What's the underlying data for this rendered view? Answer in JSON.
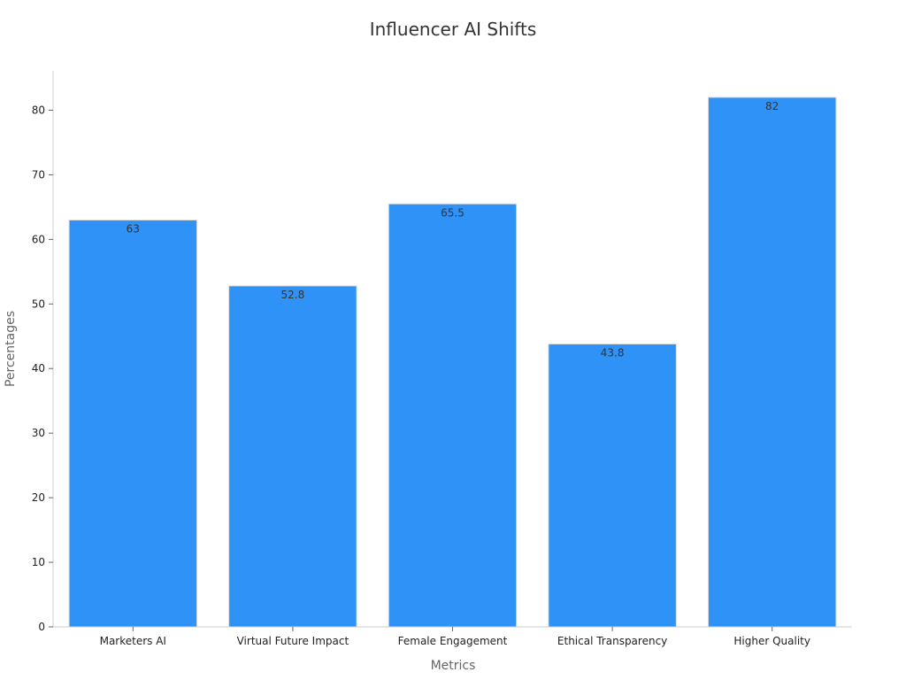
{
  "chart_data": {
    "type": "bar",
    "title": "Influencer AI Shifts",
    "xlabel": "Metrics",
    "ylabel": "Percentages",
    "categories": [
      "Marketers AI",
      "Virtual Future Impact",
      "Female Engagement",
      "Ethical Transparency",
      "Higher Quality"
    ],
    "values": [
      63,
      52.8,
      65.5,
      43.8,
      82
    ],
    "value_labels": [
      "63",
      "52.8",
      "65.5",
      "43.8",
      "82"
    ],
    "yticks": [
      0,
      10,
      20,
      30,
      40,
      50,
      60,
      70,
      80
    ],
    "ylim": [
      0,
      86.1
    ],
    "grid": false,
    "bar_color": "#2f92f7"
  }
}
